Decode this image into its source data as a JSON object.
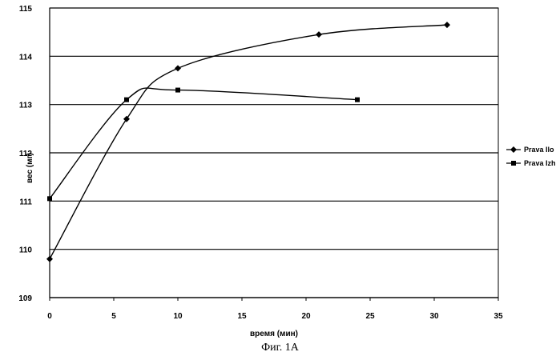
{
  "chart_data": {
    "type": "line",
    "title": "",
    "xlabel": "время (мин)",
    "ylabel": "вес (мг)",
    "xlim": [
      0,
      35
    ],
    "ylim": [
      109,
      115
    ],
    "x_ticks": [
      "0",
      "5",
      "10",
      "15",
      "20",
      "25",
      "30",
      "35"
    ],
    "y_ticks": [
      "109",
      "110",
      "111",
      "112",
      "113",
      "114",
      "115"
    ],
    "grid": "horizontal",
    "legend_position": "right",
    "series": [
      {
        "name": "Prava Ilo",
        "marker": "diamond",
        "x": [
          0,
          6,
          10,
          21,
          31
        ],
        "y": [
          109.8,
          112.7,
          113.75,
          114.45,
          114.65
        ]
      },
      {
        "name": "Prava Izh",
        "marker": "square",
        "x": [
          0,
          6,
          10,
          24
        ],
        "y": [
          111.05,
          113.1,
          113.3,
          113.1
        ]
      }
    ]
  },
  "caption": "Фиг. 1A"
}
